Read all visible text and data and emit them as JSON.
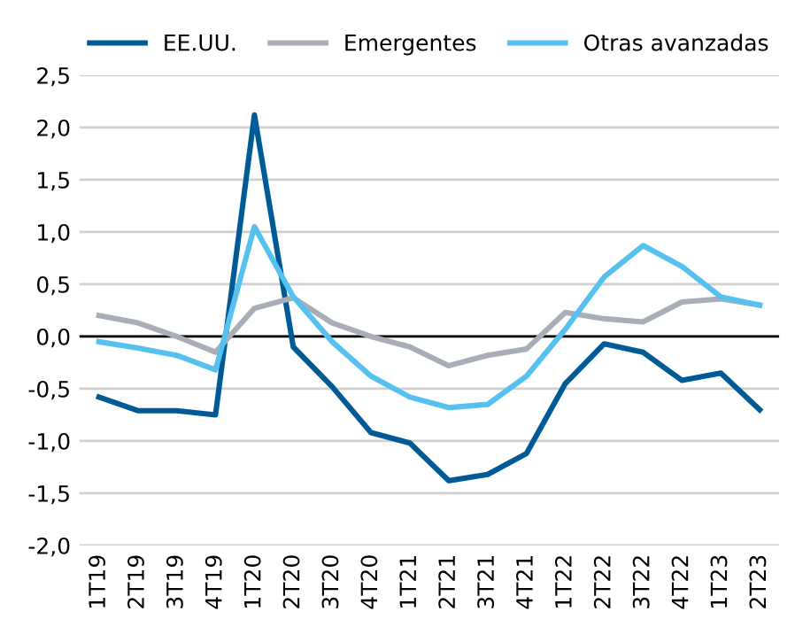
{
  "chart_data": {
    "type": "line",
    "categories": [
      "1T19",
      "2T19",
      "3T19",
      "4T19",
      "1T20",
      "2T20",
      "3T20",
      "4T20",
      "1T21",
      "2T21",
      "3T21",
      "4T21",
      "1T22",
      "2T22",
      "3T22",
      "4T22",
      "1T23",
      "2T23"
    ],
    "series": [
      {
        "name": "EE.UU.",
        "color": "#005a96",
        "values": [
          -0.58,
          -0.71,
          -0.71,
          -0.75,
          2.12,
          -0.1,
          -0.48,
          -0.92,
          -1.02,
          -1.38,
          -1.32,
          -1.12,
          -0.45,
          -0.07,
          -0.15,
          -0.42,
          -0.35,
          -0.7
        ]
      },
      {
        "name": "Emergentes",
        "color": "#a8adb8",
        "values": [
          0.2,
          0.13,
          0.0,
          -0.15,
          0.27,
          0.37,
          0.13,
          0.0,
          -0.1,
          -0.28,
          -0.18,
          -0.12,
          0.23,
          0.17,
          0.14,
          0.33,
          0.36,
          0.3
        ]
      },
      {
        "name": "Otras avanzadas",
        "color": "#56c1ef",
        "values": [
          -0.05,
          -0.11,
          -0.18,
          -0.32,
          1.05,
          0.38,
          -0.05,
          -0.38,
          -0.58,
          -0.68,
          -0.65,
          -0.38,
          0.07,
          0.57,
          0.87,
          0.67,
          0.38,
          0.3
        ]
      }
    ],
    "ylim": [
      -2.0,
      2.5
    ],
    "yticks": [
      {
        "value": -2.0,
        "label": "-2,0"
      },
      {
        "value": -1.5,
        "label": "-1,5"
      },
      {
        "value": -1.0,
        "label": "-1,0"
      },
      {
        "value": -0.5,
        "label": "-0,5"
      },
      {
        "value": 0.0,
        "label": "0,0"
      },
      {
        "value": 0.5,
        "label": "0,5"
      },
      {
        "value": 1.0,
        "label": "1,0"
      },
      {
        "value": 1.5,
        "label": "1,5"
      },
      {
        "value": 2.0,
        "label": "2,0"
      },
      {
        "value": 2.5,
        "label": "2,5"
      }
    ],
    "ref_lines": [
      {
        "axis": "y",
        "value": 0,
        "color": "#000000"
      }
    ],
    "grid": "y",
    "legend": "top",
    "marker": "none",
    "line_style": "solid"
  }
}
